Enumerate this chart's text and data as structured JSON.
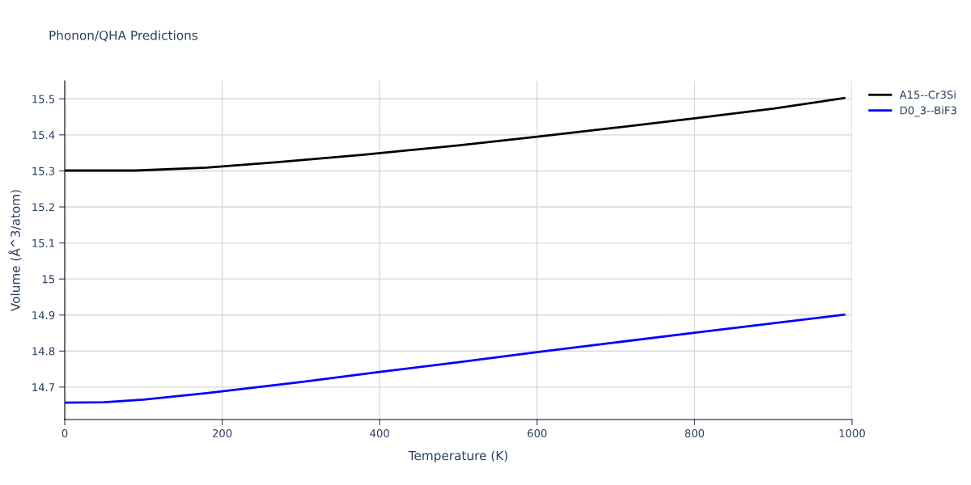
{
  "chart_data": {
    "type": "line",
    "title": "Phonon/QHA Predictions",
    "xlabel": "Temperature (K)",
    "ylabel": "Volume (Å^3/atom)",
    "series": [
      {
        "name": "A15--Cr3Si",
        "color": "#000000",
        "x": [
          0,
          40,
          90,
          180,
          270,
          380,
          500,
          600,
          700,
          800,
          900,
          990
        ],
        "values": [
          15.301,
          15.301,
          15.301,
          15.309,
          15.324,
          15.345,
          15.371,
          15.395,
          15.42,
          15.446,
          15.473,
          15.502
        ]
      },
      {
        "name": "D0_3--BiF3",
        "color": "#0000ff",
        "x": [
          0,
          50,
          100,
          180,
          300,
          400,
          500,
          600,
          700,
          800,
          900,
          990
        ],
        "values": [
          14.657,
          14.658,
          14.665,
          14.683,
          14.714,
          14.742,
          14.769,
          14.797,
          14.824,
          14.851,
          14.877,
          14.901
        ]
      }
    ],
    "xlim": [
      0,
      1000
    ],
    "xticks": [
      0,
      200,
      400,
      600,
      800,
      1000
    ],
    "ylim": [
      14.61,
      15.55
    ],
    "yticks": [
      14.7,
      14.8,
      14.9,
      15,
      15.1,
      15.2,
      15.3,
      15.4,
      15.5
    ],
    "grid": true,
    "legend": "top right",
    "marker": "none",
    "line_style": "solid"
  }
}
